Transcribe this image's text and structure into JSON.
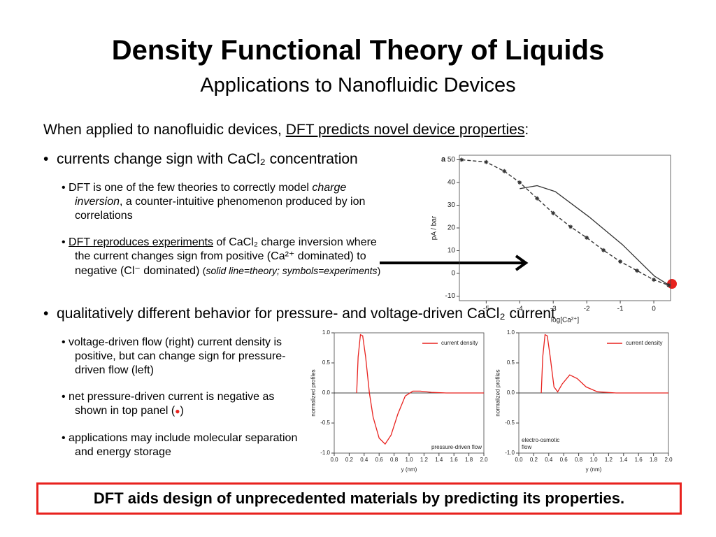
{
  "title": "Density Functional Theory of Liquids",
  "subtitle": "Applications to Nanofluidic Devices",
  "intro": [
    "When applied to nanofluidic devices, ",
    "DFT predicts novel device properties",
    ":"
  ],
  "bullets": [
    {
      "text": "currents change sign with CaCl₂ concentration",
      "sub_bullets": [
        [
          "DFT is one of the few theories to correctly model ",
          "charge inversion",
          ", a counter-intuitive phenomenon produced by ion correlations"
        ],
        [
          "DFT reproduces experiments",
          " of CaCl₂ charge inversion where the current changes sign from positive (Ca²⁺ dominated) to negative (Cl⁻ dominated) ",
          "(",
          "solid line=theory; symbols=experiments",
          ")"
        ]
      ]
    },
    {
      "text": "qualitatively different behavior for pressure- and voltage-driven CaCl₂ current",
      "sub_bullets": [
        [
          "voltage-driven flow (right) current density is positive, but can change sign for pressure-driven flow (left)"
        ],
        [
          "net pressure-driven current is negative as shown in top panel (",
          "●",
          ")"
        ],
        [
          "applications may include molecular separation and energy storage"
        ]
      ]
    }
  ],
  "footer": "DFT aids design of unprecedented materials by predicting its properties.",
  "chart_data": [
    {
      "type": "line",
      "panel_label": "a",
      "xlabel": "log[Ca²⁺]",
      "ylabel": "pA / bar",
      "xlim": [
        -5.8,
        0.5
      ],
      "ylim": [
        -12,
        52
      ],
      "xticks": [
        -5,
        -4,
        -3,
        -2,
        -1,
        0
      ],
      "yticks": [
        -10,
        0,
        10,
        20,
        30,
        40,
        50
      ],
      "series": [
        {
          "color": "#333333",
          "line_style": "dashed",
          "marker": "star",
          "x": [
            -5.73,
            -5,
            -4.46,
            -4,
            -3.48,
            -3,
            -2.48,
            -2,
            -1.5,
            -1,
            -0.5,
            0,
            0.44
          ],
          "values": [
            50,
            49,
            45,
            40,
            33,
            26.5,
            20.5,
            15.7,
            10.2,
            5.2,
            1.2,
            -2.8,
            -5.2
          ]
        },
        {
          "color": "#333333",
          "line_style": "solid",
          "x": [
            -4,
            -3.48,
            -2.94,
            -1.94,
            -0.94,
            0.02,
            0.44
          ],
          "values": [
            37.3,
            38.6,
            36,
            25,
            12.7,
            -1.2,
            -5
          ]
        }
      ]
    },
    {
      "type": "line",
      "xlabel": "y (nm)",
      "ylabel": "normalized profiles",
      "baseline": 0,
      "annotation": [
        "pressure-driven flow"
      ],
      "xlim": [
        0,
        2
      ],
      "ylim": [
        -1,
        1
      ],
      "xticks": [
        {
          "value": 0,
          "label": "0.0"
        },
        0.2,
        0.4,
        0.6,
        0.8,
        {
          "value": 1,
          "label": "1.0"
        },
        1.2,
        1.4,
        1.6,
        1.8,
        {
          "value": 2,
          "label": "2.0"
        }
      ],
      "yticks": [
        {
          "value": -1,
          "label": "-1.0"
        },
        -0.5,
        {
          "value": 0,
          "label": "0.0"
        },
        0.5,
        {
          "value": 1,
          "label": "1.0"
        }
      ],
      "series": [
        {
          "name": "current density",
          "color": "#e8221e",
          "line_style": "solid",
          "x": [
            0.3,
            0.32,
            0.35,
            0.38,
            0.42,
            0.47,
            0.52,
            0.6,
            0.68,
            0.76,
            0.85,
            0.95,
            1.05,
            1.15,
            1.3,
            1.5,
            2
          ],
          "values": [
            0,
            0.6,
            0.97,
            0.95,
            0.6,
            0,
            -0.4,
            -0.75,
            -0.85,
            -0.7,
            -0.35,
            -0.05,
            0.03,
            0.03,
            0.01,
            0,
            0
          ]
        }
      ]
    },
    {
      "type": "line",
      "xlabel": "y (nm)",
      "ylabel": "normalized profiles",
      "baseline": 0,
      "annotation": [
        "electro-osmotic",
        "flow"
      ],
      "xlim": [
        0,
        2
      ],
      "ylim": [
        -1,
        1
      ],
      "xticks": [
        {
          "value": 0,
          "label": "0.0"
        },
        0.2,
        0.4,
        0.6,
        0.8,
        {
          "value": 1,
          "label": "1.0"
        },
        1.2,
        1.4,
        1.6,
        1.8,
        {
          "value": 2,
          "label": "2.0"
        }
      ],
      "yticks": [
        {
          "value": -1,
          "label": "-1.0"
        },
        -0.5,
        {
          "value": 0,
          "label": "0.0"
        },
        0.5,
        {
          "value": 1,
          "label": "1.0"
        }
      ],
      "series": [
        {
          "name": "current density",
          "color": "#e8221e",
          "line_style": "solid",
          "x": [
            0.3,
            0.32,
            0.35,
            0.38,
            0.42,
            0.47,
            0.52,
            0.58,
            0.68,
            0.78,
            0.9,
            1.05,
            1.3,
            2
          ],
          "values": [
            0,
            0.6,
            0.97,
            0.95,
            0.6,
            0.1,
            0.02,
            0.15,
            0.3,
            0.24,
            0.1,
            0.02,
            0,
            0
          ]
        }
      ]
    }
  ]
}
